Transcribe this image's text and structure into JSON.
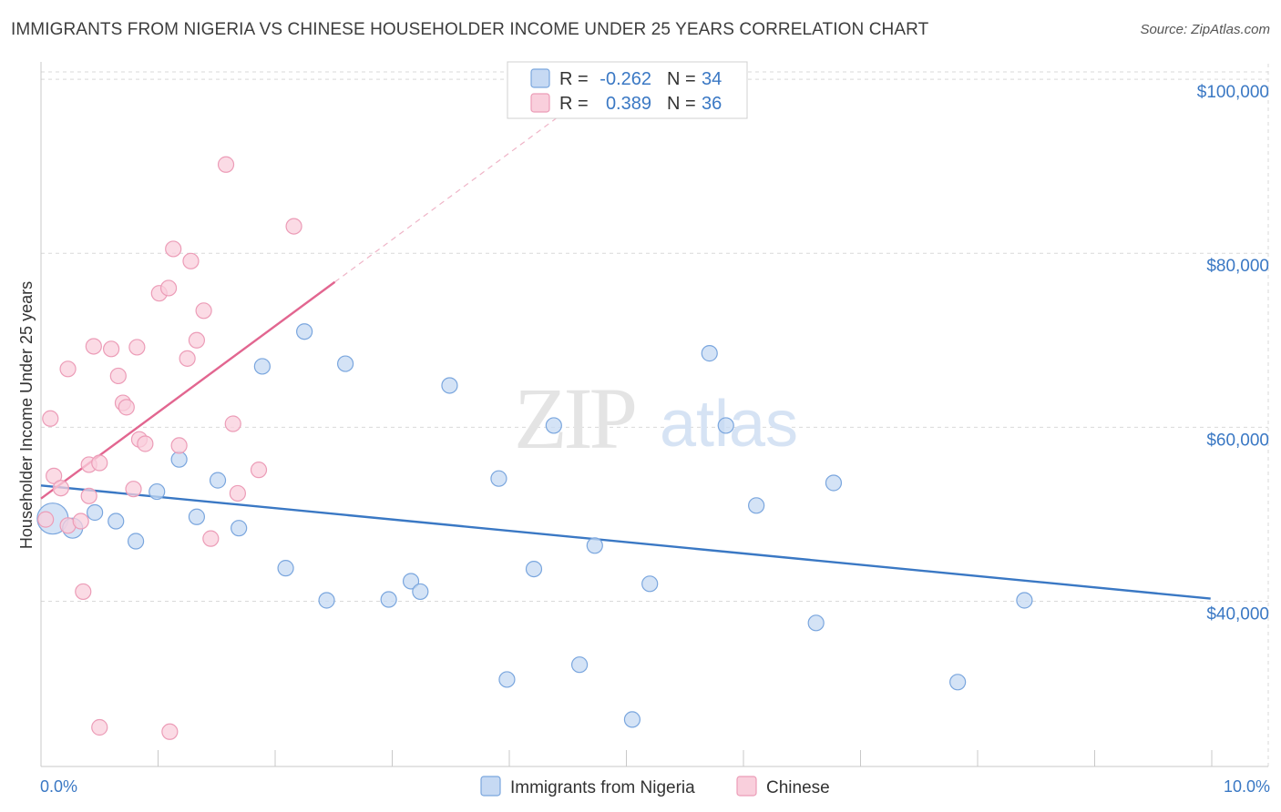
{
  "title": "IMMIGRANTS FROM NIGERIA VS CHINESE HOUSEHOLDER INCOME UNDER 25 YEARS CORRELATION CHART",
  "source": "Source: ZipAtlas.com",
  "watermark": {
    "zip": "ZIP",
    "atlas": "atlas"
  },
  "colors": {
    "blue": "#3a78c4",
    "blue_fill": "#c6d9f3",
    "blue_stroke": "#7aa6de",
    "pink": "#e26690",
    "pink_fill": "#f9cfdc",
    "pink_stroke": "#ec9cb7",
    "grid": "#d9d9d9"
  },
  "legend": {
    "rows": [
      {
        "r_label": "R =",
        "r_value": "-0.262",
        "n_label": "N =",
        "n_value": "34",
        "series": "Immigrants from Nigeria"
      },
      {
        "r_label": "R =",
        "r_value": "0.389",
        "n_label": "N =",
        "n_value": "36",
        "series": "Chinese"
      }
    ]
  },
  "chart_data": {
    "type": "scatter",
    "xlabel": "",
    "ylabel": "Householder Income Under 25 years",
    "xlim": [
      0,
      10
    ],
    "ylim": [
      21000,
      102000
    ],
    "x_tick_labels": [
      {
        "value": 0,
        "label": "0.0%"
      },
      {
        "value": 10,
        "label": "10.0%"
      }
    ],
    "x_minor_ticks": [
      0,
      1,
      2,
      3,
      4,
      5,
      6,
      7,
      8,
      9,
      10
    ],
    "y_ticks": [
      {
        "value": 40000,
        "label": "$40,000"
      },
      {
        "value": 60000,
        "label": "$60,000"
      },
      {
        "value": 80000,
        "label": "$80,000"
      },
      {
        "value": 100000,
        "label": "$100,000"
      }
    ],
    "series": [
      {
        "name": "Immigrants from Nigeria",
        "color": "blue",
        "points": [
          [
            0.1,
            49500
          ],
          [
            0.27,
            48400
          ],
          [
            0.46,
            50200
          ],
          [
            0.64,
            49200
          ],
          [
            0.81,
            46900
          ],
          [
            0.99,
            52600
          ],
          [
            1.18,
            56300
          ],
          [
            1.33,
            49700
          ],
          [
            1.51,
            53900
          ],
          [
            1.69,
            48400
          ],
          [
            1.89,
            67000
          ],
          [
            2.09,
            43800
          ],
          [
            2.25,
            71000
          ],
          [
            2.44,
            40100
          ],
          [
            2.6,
            67300
          ],
          [
            2.97,
            40200
          ],
          [
            3.16,
            42300
          ],
          [
            3.24,
            41100
          ],
          [
            3.49,
            64800
          ],
          [
            3.91,
            54100
          ],
          [
            3.98,
            31000
          ],
          [
            4.21,
            43700
          ],
          [
            4.38,
            60200
          ],
          [
            4.6,
            32700
          ],
          [
            4.73,
            46400
          ],
          [
            5.05,
            26400
          ],
          [
            5.2,
            42000
          ],
          [
            5.71,
            68500
          ],
          [
            5.85,
            60200
          ],
          [
            6.11,
            51000
          ],
          [
            6.62,
            37500
          ],
          [
            6.77,
            53600
          ],
          [
            7.83,
            30700
          ],
          [
            8.4,
            40100
          ]
        ],
        "trend": {
          "x": [
            0,
            9.99
          ],
          "y": [
            53300,
            40300
          ],
          "dashed_extension": false
        }
      },
      {
        "name": "Chinese",
        "color": "pink",
        "points": [
          [
            0.04,
            49400
          ],
          [
            0.08,
            61000
          ],
          [
            0.11,
            54400
          ],
          [
            0.17,
            53000
          ],
          [
            0.23,
            48700
          ],
          [
            0.23,
            66700
          ],
          [
            0.34,
            49200
          ],
          [
            0.36,
            41100
          ],
          [
            0.41,
            52100
          ],
          [
            0.41,
            55700
          ],
          [
            0.45,
            69300
          ],
          [
            0.5,
            55900
          ],
          [
            0.5,
            25500
          ],
          [
            0.6,
            69000
          ],
          [
            0.66,
            65900
          ],
          [
            0.7,
            62800
          ],
          [
            0.73,
            62300
          ],
          [
            0.79,
            52900
          ],
          [
            0.82,
            69200
          ],
          [
            0.84,
            58600
          ],
          [
            0.89,
            58100
          ],
          [
            1.01,
            75400
          ],
          [
            1.09,
            76000
          ],
          [
            1.1,
            25000
          ],
          [
            1.13,
            80500
          ],
          [
            1.18,
            57900
          ],
          [
            1.25,
            67900
          ],
          [
            1.28,
            79100
          ],
          [
            1.33,
            70000
          ],
          [
            1.39,
            73400
          ],
          [
            1.45,
            47200
          ],
          [
            1.58,
            90200
          ],
          [
            1.64,
            60400
          ],
          [
            1.68,
            52400
          ],
          [
            1.86,
            55100
          ],
          [
            2.16,
            83100
          ]
        ],
        "trend": {
          "x": [
            0,
            2.51
          ],
          "y": [
            51800,
            76700
          ],
          "dashed_extension": {
            "x": [
              2.51,
              4.5
            ],
            "y": [
              76700,
              96500
            ]
          }
        }
      }
    ],
    "legend_position": "top-center"
  }
}
